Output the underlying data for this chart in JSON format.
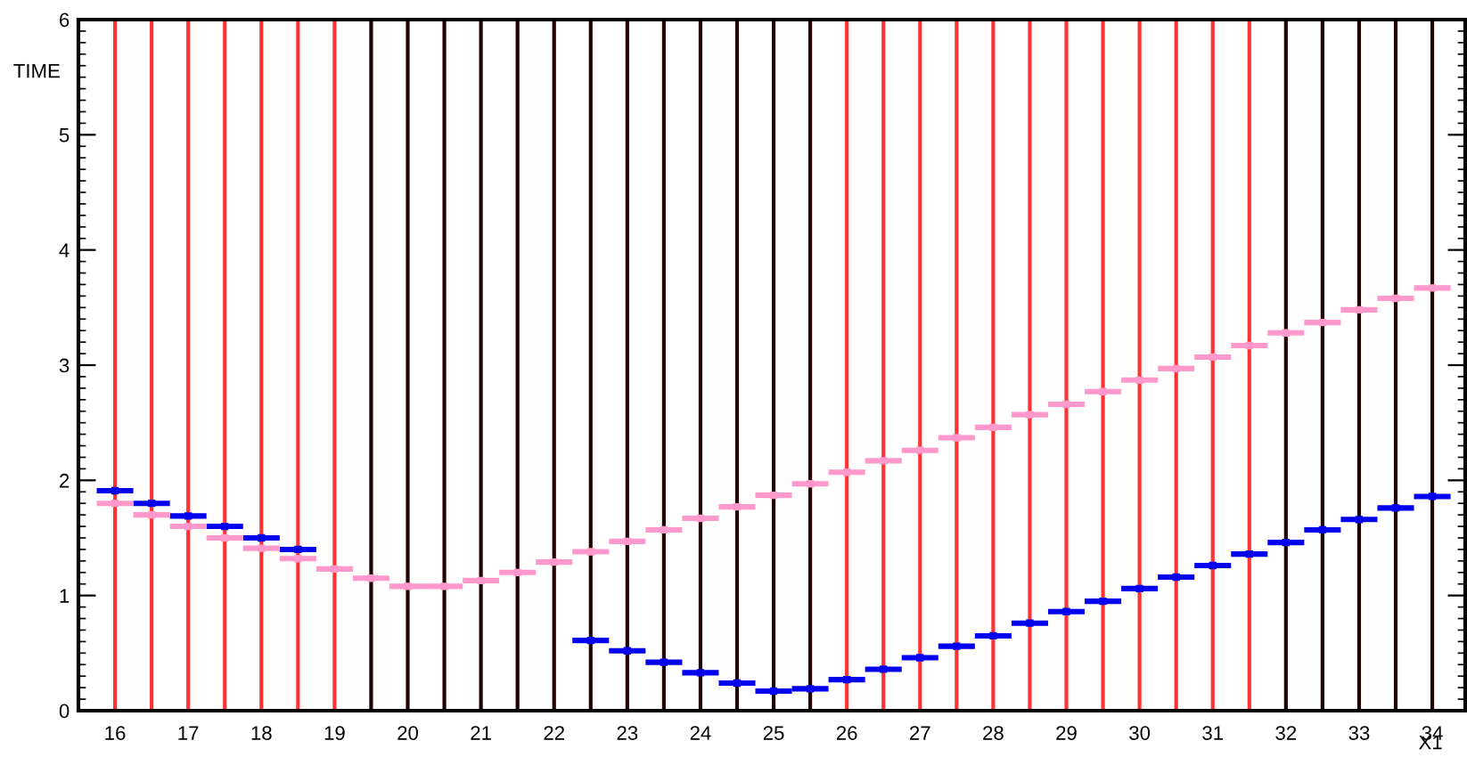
{
  "chart_data": {
    "type": "scatter",
    "xlabel": "X1",
    "ylabel": "TIME",
    "x": [
      16,
      16.5,
      17,
      17.5,
      18,
      18.5,
      19,
      19.5,
      20,
      20.5,
      21,
      21.5,
      22,
      22.5,
      23,
      23.5,
      24,
      24.5,
      25,
      25.5,
      26,
      26.5,
      27,
      27.5,
      28,
      28.5,
      29,
      29.5,
      30,
      30.5,
      31,
      31.5,
      32,
      32.5,
      33,
      33.5,
      34
    ],
    "series": [
      {
        "color": "#0000ee",
        "values": [
          1.91,
          1.8,
          1.69,
          1.6,
          1.5,
          1.4,
          null,
          null,
          null,
          null,
          null,
          null,
          null,
          0.61,
          0.52,
          0.42,
          0.33,
          0.24,
          0.17,
          0.19,
          0.27,
          0.36,
          0.46,
          0.56,
          0.65,
          0.76,
          0.86,
          0.95,
          1.06,
          1.16,
          1.26,
          1.36,
          1.46,
          1.57,
          1.66,
          1.76,
          1.86
        ],
        "xerrors": [
          0.25,
          0.25,
          0.25,
          0.25,
          0.25,
          0.25,
          null,
          null,
          null,
          null,
          null,
          null,
          null,
          0.25,
          0.25,
          0.25,
          0.25,
          0.25,
          0.25,
          0.25,
          0.25,
          0.25,
          0.25,
          0.25,
          0.25,
          0.25,
          0.25,
          0.25,
          0.25,
          0.25,
          0.25,
          0.25,
          0.25,
          0.25,
          0.25,
          0.25,
          0.25
        ]
      },
      {
        "color": "#ff99cc",
        "values": [
          1.8,
          1.7,
          1.6,
          1.5,
          1.41,
          1.32,
          1.23,
          1.15,
          1.08,
          1.08,
          1.13,
          1.2,
          1.29,
          1.38,
          1.47,
          1.57,
          1.67,
          1.77,
          1.87,
          1.97,
          2.07,
          2.17,
          2.26,
          2.37,
          2.46,
          2.57,
          2.66,
          2.77,
          2.87,
          2.97,
          3.07,
          3.17,
          3.28,
          3.37,
          3.48,
          3.58,
          3.67
        ],
        "xerrors": [
          0.25,
          0.25,
          0.25,
          0.25,
          0.25,
          0.25,
          0.25,
          0.25,
          0.25,
          0.25,
          0.25,
          0.25,
          0.25,
          0.25,
          0.25,
          0.25,
          0.25,
          0.25,
          0.25,
          0.25,
          0.25,
          0.25,
          0.25,
          0.25,
          0.25,
          0.25,
          0.25,
          0.25,
          0.25,
          0.25,
          0.25,
          0.25,
          0.25,
          0.25,
          0.25,
          0.25,
          0.25
        ]
      }
    ],
    "ref_lines": [
      {
        "axis": "x",
        "value": 16,
        "color": "#ff3333"
      },
      {
        "axis": "x",
        "value": 16.5,
        "color": "#ff3333"
      },
      {
        "axis": "x",
        "value": 17,
        "color": "#ff3333"
      },
      {
        "axis": "x",
        "value": 17.5,
        "color": "#ff3333"
      },
      {
        "axis": "x",
        "value": 18,
        "color": "#ff3333"
      },
      {
        "axis": "x",
        "value": 18.5,
        "color": "#ff3333"
      },
      {
        "axis": "x",
        "value": 19,
        "color": "#ff3333"
      },
      {
        "axis": "x",
        "value": 19.5,
        "color": "#220000"
      },
      {
        "axis": "x",
        "value": 20,
        "color": "#220000"
      },
      {
        "axis": "x",
        "value": 20.5,
        "color": "#220000"
      },
      {
        "axis": "x",
        "value": 21,
        "color": "#220000"
      },
      {
        "axis": "x",
        "value": 21.5,
        "color": "#220000"
      },
      {
        "axis": "x",
        "value": 22,
        "color": "#220000"
      },
      {
        "axis": "x",
        "value": 22.5,
        "color": "#220000"
      },
      {
        "axis": "x",
        "value": 23,
        "color": "#220000"
      },
      {
        "axis": "x",
        "value": 23.5,
        "color": "#220000"
      },
      {
        "axis": "x",
        "value": 24,
        "color": "#220000"
      },
      {
        "axis": "x",
        "value": 24.5,
        "color": "#220000"
      },
      {
        "axis": "x",
        "value": 25,
        "color": "#220000"
      },
      {
        "axis": "x",
        "value": 25.5,
        "color": "#220000"
      },
      {
        "axis": "x",
        "value": 26,
        "color": "#ff3333"
      },
      {
        "axis": "x",
        "value": 26.5,
        "color": "#ff3333"
      },
      {
        "axis": "x",
        "value": 27,
        "color": "#ff3333"
      },
      {
        "axis": "x",
        "value": 27.5,
        "color": "#ff3333"
      },
      {
        "axis": "x",
        "value": 28,
        "color": "#ff3333"
      },
      {
        "axis": "x",
        "value": 28.5,
        "color": "#ff3333"
      },
      {
        "axis": "x",
        "value": 29,
        "color": "#ff3333"
      },
      {
        "axis": "x",
        "value": 29.5,
        "color": "#ff3333"
      },
      {
        "axis": "x",
        "value": 30,
        "color": "#ff3333"
      },
      {
        "axis": "x",
        "value": 30.5,
        "color": "#ff3333"
      },
      {
        "axis": "x",
        "value": 31,
        "color": "#ff3333"
      },
      {
        "axis": "x",
        "value": 31.5,
        "color": "#ff3333"
      },
      {
        "axis": "x",
        "value": 32,
        "color": "#220000"
      },
      {
        "axis": "x",
        "value": 32.5,
        "color": "#220000"
      },
      {
        "axis": "x",
        "value": 33,
        "color": "#220000"
      },
      {
        "axis": "x",
        "value": 33.5,
        "color": "#220000"
      },
      {
        "axis": "x",
        "value": 34,
        "color": "#220000"
      }
    ],
    "xlim": [
      15.5,
      34.45
    ],
    "xticks": [
      16,
      17,
      18,
      19,
      20,
      21,
      22,
      23,
      24,
      25,
      26,
      27,
      28,
      29,
      30,
      31,
      32,
      33,
      34
    ],
    "ylim": [
      0,
      6
    ],
    "yticks": [
      0,
      1,
      2,
      3,
      4,
      5,
      6
    ],
    "grid": false,
    "marker": "square"
  }
}
